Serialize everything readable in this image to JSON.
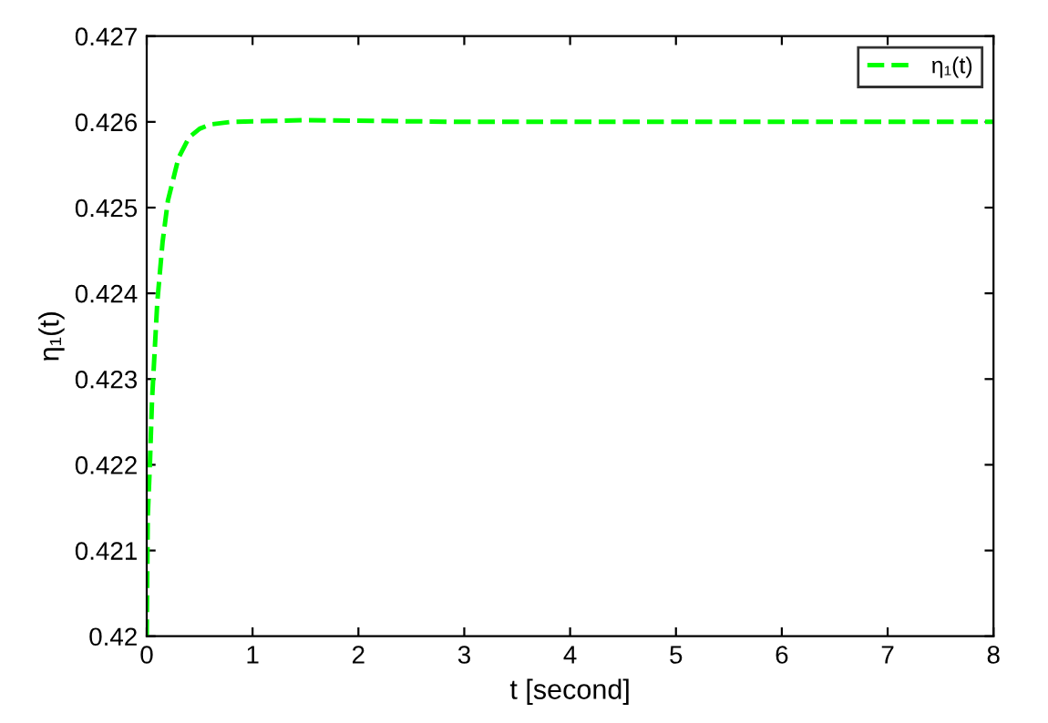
{
  "chart_data": {
    "type": "line",
    "xlabel": "t [second]",
    "ylabel": "η₁(t)",
    "xlim": [
      0,
      8
    ],
    "ylim": [
      0.42,
      0.427
    ],
    "xticks": [
      0,
      1,
      2,
      3,
      4,
      5,
      6,
      7,
      8
    ],
    "yticks": [
      0.42,
      0.421,
      0.422,
      0.423,
      0.424,
      0.425,
      0.426,
      0.427
    ],
    "grid": false,
    "legend": "top right",
    "line_style": "dashed",
    "marker": "none",
    "series": [
      {
        "name": "η₁(t)",
        "color": "#00ff00",
        "x": [
          0,
          0.01,
          0.03,
          0.05,
          0.1,
          0.15,
          0.2,
          0.3,
          0.4,
          0.5,
          0.6,
          0.8,
          1.5,
          3,
          8
        ],
        "values": [
          0.42,
          0.4214,
          0.422,
          0.42275,
          0.4239,
          0.4246,
          0.42508,
          0.42558,
          0.42582,
          0.42592,
          0.42597,
          0.426,
          0.42602,
          0.426,
          0.426
        ]
      }
    ]
  }
}
